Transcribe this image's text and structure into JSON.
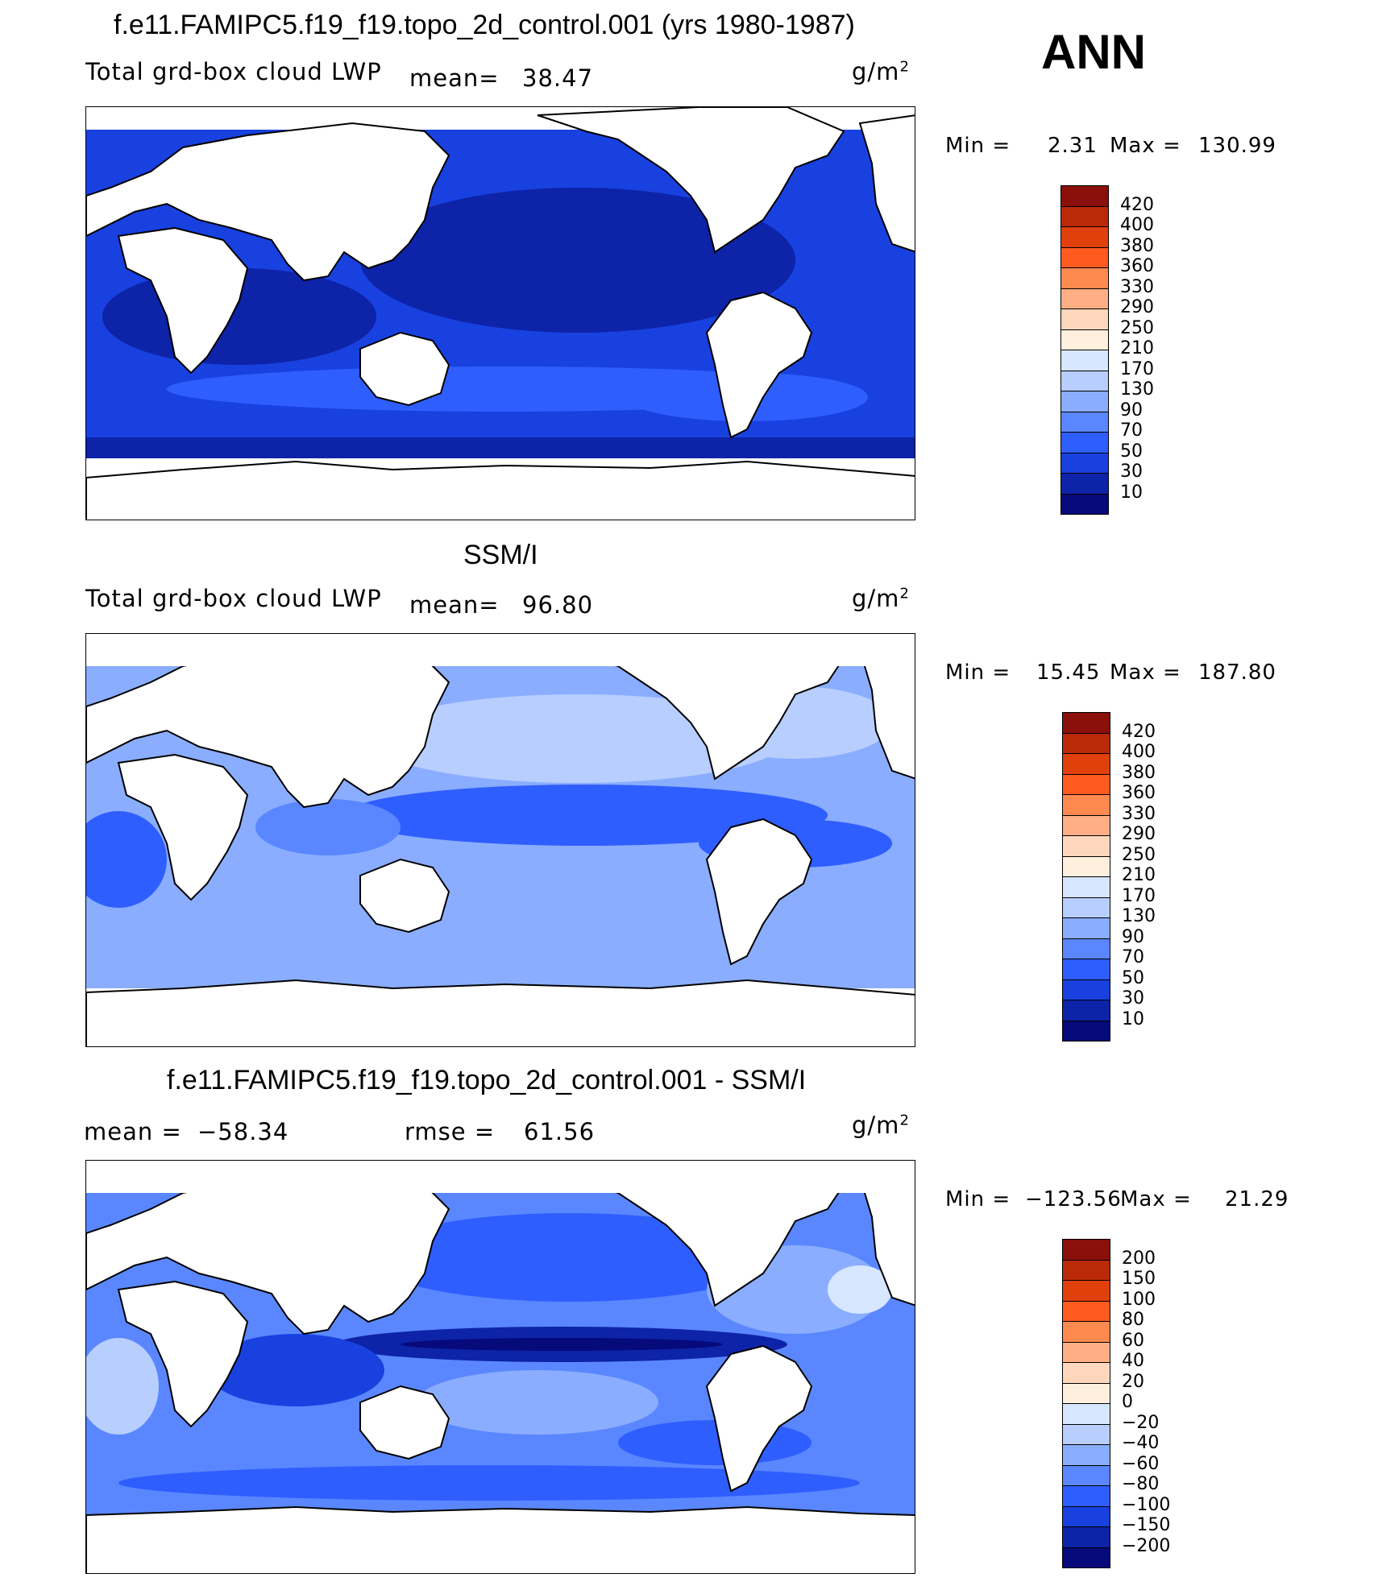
{
  "season": "ANN",
  "units": "g/m",
  "units_sup": "2",
  "chart_data": [
    {
      "type": "heatmap",
      "title": "f.e11.FAMIPC5.f19_f19.topo_2d_control.001 (yrs 1980-1987)",
      "variable": "Total grd-box cloud LWP",
      "mean_label": "mean=",
      "mean": "38.47",
      "min_label": "Min =",
      "min": "2.31",
      "max_label": "Max =",
      "max": "130.99",
      "colorbar_levels": [
        "420",
        "400",
        "380",
        "360",
        "330",
        "290",
        "250",
        "210",
        "170",
        "130",
        "90",
        "70",
        "50",
        "30",
        "10"
      ],
      "colorbar_colors": [
        "#8b0f0a",
        "#bb2a08",
        "#e0400c",
        "#ff5a20",
        "#ff8a4f",
        "#ffae85",
        "#ffd7bd",
        "#fff0de",
        "#d7e7ff",
        "#b7ceff",
        "#8aadff",
        "#5a87ff",
        "#2f5eff",
        "#1841e0",
        "#0d23a8",
        "#060a7a"
      ]
    },
    {
      "type": "heatmap",
      "title": "SSM/I",
      "variable": "Total grd-box cloud LWP",
      "mean_label": "mean=",
      "mean": "96.80",
      "min_label": "Min =",
      "min": "15.45",
      "max_label": "Max =",
      "max": "187.80",
      "colorbar_levels": [
        "420",
        "400",
        "380",
        "360",
        "330",
        "290",
        "250",
        "210",
        "170",
        "130",
        "90",
        "70",
        "50",
        "30",
        "10"
      ],
      "colorbar_colors": [
        "#8b0f0a",
        "#bb2a08",
        "#e0400c",
        "#ff5a20",
        "#ff8a4f",
        "#ffae85",
        "#ffd7bd",
        "#fff0de",
        "#d7e7ff",
        "#b7ceff",
        "#8aadff",
        "#5a87ff",
        "#2f5eff",
        "#1841e0",
        "#0d23a8",
        "#060a7a"
      ]
    },
    {
      "type": "heatmap",
      "title": "f.e11.FAMIPC5.f19_f19.topo_2d_control.001 - SSM/I",
      "mean_label": "mean =",
      "mean": "-58.34",
      "rmse_label": "rmse =",
      "rmse": "61.56",
      "min_label": "Min =",
      "min": "-123.56",
      "max_label": "Max =",
      "max": "21.29",
      "colorbar_levels": [
        "200",
        "150",
        "100",
        "80",
        "60",
        "40",
        "20",
        "0",
        "-20",
        "-40",
        "-60",
        "-80",
        "-100",
        "-150",
        "-200"
      ],
      "colorbar_colors": [
        "#8b0f0a",
        "#bb2a08",
        "#e0400c",
        "#ff5a20",
        "#ff8a4f",
        "#ffae85",
        "#ffd7bd",
        "#fff0de",
        "#d7e7ff",
        "#b7ceff",
        "#8aadff",
        "#5a87ff",
        "#2f5eff",
        "#1841e0",
        "#0d23a8",
        "#060a7a"
      ]
    }
  ]
}
